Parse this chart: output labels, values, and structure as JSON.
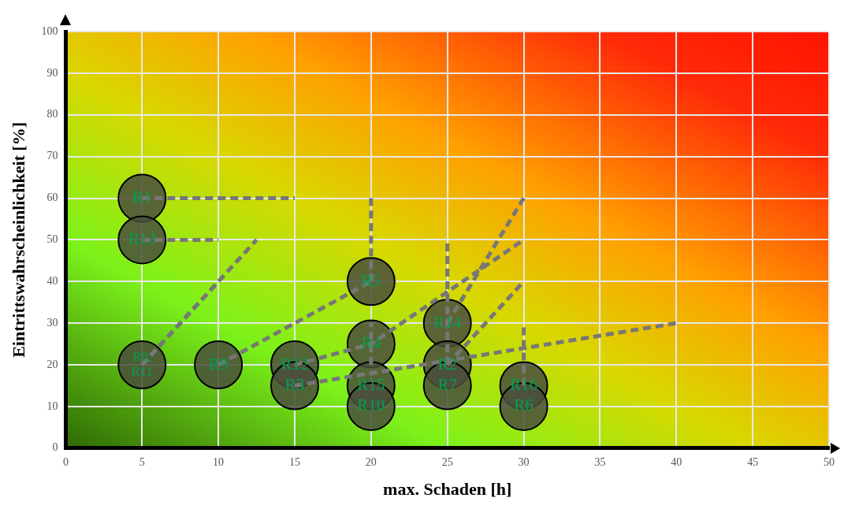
{
  "chart_data": {
    "type": "scatter",
    "xlabel": "max. Schaden [h]",
    "ylabel": "Eintrittswahrscheinlichkeit [%]",
    "xlim": [
      0,
      50
    ],
    "xticks": [
      0,
      5,
      10,
      15,
      20,
      25,
      30,
      35,
      40,
      45,
      50
    ],
    "ylim": [
      0,
      100
    ],
    "yticks": [
      0,
      10,
      20,
      30,
      40,
      50,
      60,
      70,
      80,
      90,
      100
    ],
    "grid": true,
    "series": [
      {
        "type": "scatter",
        "color": "#4a4d3c",
        "marker": "circle",
        "x": [
          5,
          5,
          5,
          10,
          15,
          15,
          20,
          20,
          20,
          20,
          25,
          25,
          25,
          30,
          30
        ],
        "values": [
          60,
          50,
          20,
          20,
          20,
          15,
          40,
          25,
          15,
          10,
          30,
          20,
          15,
          15,
          10
        ],
        "value_labels": [
          "R1",
          "R13",
          "R8, R11",
          "R9",
          "R12",
          "R3",
          "R5",
          "R4",
          "R15",
          "R10",
          "R14",
          "R2",
          "R7",
          "R16",
          "R6"
        ]
      },
      {
        "type": "line",
        "color": "#777777",
        "line_style": "dashed",
        "marker": "none",
        "x": [
          5,
          15
        ],
        "values": [
          60,
          60
        ]
      },
      {
        "type": "line",
        "color": "#777777",
        "line_style": "dashed",
        "marker": "none",
        "x": [
          5,
          10
        ],
        "values": [
          50,
          50
        ]
      },
      {
        "type": "line",
        "color": "#777777",
        "line_style": "dashed",
        "marker": "none",
        "x": [
          5,
          10
        ],
        "values": [
          20,
          40
        ]
      },
      {
        "type": "line",
        "color": "#777777",
        "line_style": "dashed",
        "marker": "none",
        "x": [
          5,
          12.5
        ],
        "values": [
          20,
          50
        ]
      },
      {
        "type": "line",
        "color": "#777777",
        "line_style": "dashed",
        "marker": "none",
        "x": [
          10,
          20
        ],
        "values": [
          20,
          40
        ]
      },
      {
        "type": "line",
        "color": "#777777",
        "line_style": "dashed",
        "marker": "none",
        "x": [
          20,
          20
        ],
        "values": [
          40,
          60
        ]
      },
      {
        "type": "line",
        "color": "#777777",
        "line_style": "dashed",
        "marker": "none",
        "x": [
          15,
          20,
          30
        ],
        "values": [
          20,
          25,
          50
        ]
      },
      {
        "type": "line",
        "color": "#777777",
        "line_style": "dashed",
        "marker": "none",
        "x": [
          20,
          20
        ],
        "values": [
          20,
          30
        ]
      },
      {
        "type": "line",
        "color": "#777777",
        "line_style": "dashed",
        "marker": "none",
        "x": [
          25,
          25
        ],
        "values": [
          20,
          50
        ]
      },
      {
        "type": "line",
        "color": "#777777",
        "line_style": "dashed",
        "marker": "none",
        "x": [
          25,
          30
        ],
        "values": [
          30,
          60
        ]
      },
      {
        "type": "line",
        "color": "#777777",
        "line_style": "dashed",
        "marker": "none",
        "x": [
          25,
          30
        ],
        "values": [
          20,
          40
        ]
      },
      {
        "type": "line",
        "color": "#777777",
        "line_style": "dashed",
        "marker": "none",
        "x": [
          30,
          30
        ],
        "values": [
          15,
          30
        ]
      },
      {
        "type": "line",
        "color": "#777777",
        "line_style": "dashed",
        "marker": "none",
        "x": [
          15,
          40
        ],
        "values": [
          15,
          30
        ]
      }
    ]
  }
}
